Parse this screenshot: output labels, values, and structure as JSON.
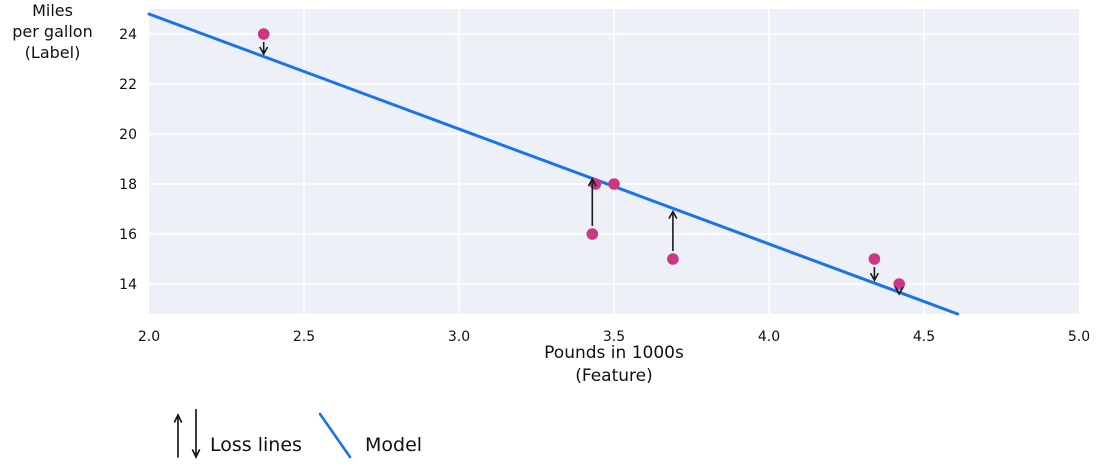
{
  "chart_data": {
    "type": "scatter",
    "title": "",
    "xlabel_lines": [
      "Pounds in 1000s",
      "(Feature)"
    ],
    "ylabel_lines": [
      "Miles",
      "per gallon",
      "(Label)"
    ],
    "x_ticks": [
      2.0,
      2.5,
      3.0,
      3.5,
      4.0,
      4.5,
      5.0
    ],
    "x_tick_labels": [
      "2.0",
      "2.5",
      "3.0",
      "3.5",
      "4.0",
      "4.5",
      "5.0"
    ],
    "y_ticks": [
      14,
      16,
      18,
      20,
      22,
      24
    ],
    "y_tick_labels": [
      "14",
      "16",
      "18",
      "20",
      "22",
      "24"
    ],
    "xlim": [
      2.0,
      5.0
    ],
    "ylim": [
      12.8,
      25.0
    ],
    "grid": "on",
    "points": [
      [
        2.37,
        24
      ],
      [
        3.44,
        18
      ],
      [
        3.5,
        18
      ],
      [
        3.43,
        16
      ],
      [
        3.69,
        15
      ],
      [
        4.34,
        15
      ],
      [
        4.42,
        14
      ]
    ],
    "model_line": {
      "slope": -4.6,
      "intercept": 34,
      "x_start": 2.0
    },
    "loss_arrows": [
      {
        "x": 2.37,
        "from": 24,
        "to": 23.2
      },
      {
        "x": 3.43,
        "from": 16,
        "to": 18.2
      },
      {
        "x": 3.69,
        "from": 15,
        "to": 16.9
      },
      {
        "x": 4.34,
        "from": 15,
        "to": 14.15
      },
      {
        "x": 4.42,
        "from": 14,
        "to": 13.6
      }
    ],
    "legend": [
      {
        "icon": "loss-lines-icon",
        "label": "Loss lines"
      },
      {
        "icon": "model-line-icon",
        "label": "Model"
      }
    ],
    "legend_position": "bottom-left",
    "colors": {
      "point": "#cc3781",
      "model": "#1a73e8",
      "plot_bg": "#edf0f7",
      "grid": "#ffffff",
      "arrow": "#1a1a1a",
      "text": "#111111"
    }
  }
}
